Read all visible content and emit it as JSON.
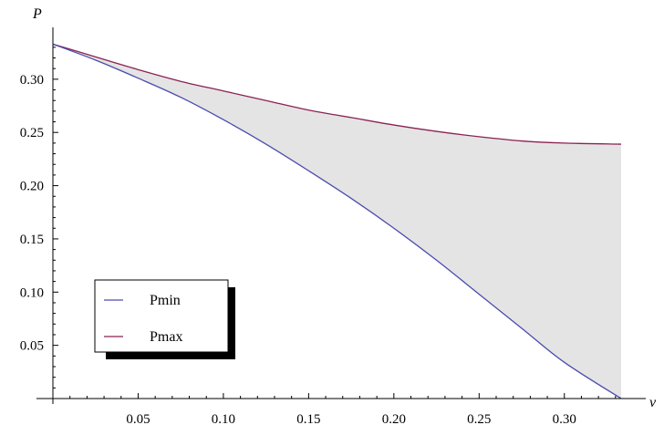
{
  "chart_data": {
    "type": "area",
    "title": "",
    "xlabel": "ν",
    "ylabel": "P",
    "xlim": [
      0,
      0.3333
    ],
    "ylim": [
      0,
      0.3333
    ],
    "grid": false,
    "legend_position": "bottom-left",
    "x_ticks": [
      0.05,
      0.1,
      0.15,
      0.2,
      0.25,
      0.3
    ],
    "x_tick_labels": [
      "0.05",
      "0.10",
      "0.15",
      "0.20",
      "0.25",
      "0.30"
    ],
    "y_ticks": [
      0.05,
      0.1,
      0.15,
      0.2,
      0.25,
      0.3
    ],
    "y_tick_labels": [
      "0.05",
      "0.10",
      "0.15",
      "0.20",
      "0.25",
      "0.30"
    ],
    "fill_between": {
      "lower": "Pmin",
      "upper": "Pmax",
      "color": "#e4e4e4"
    },
    "series": [
      {
        "name": "Pmin",
        "color": "#4b4bb0",
        "x": [
          0,
          0.025,
          0.05,
          0.075,
          0.1,
          0.125,
          0.15,
          0.175,
          0.2,
          0.225,
          0.25,
          0.275,
          0.3,
          0.3333
        ],
        "y": [
          0.333,
          0.318,
          0.301,
          0.283,
          0.262,
          0.239,
          0.214,
          0.188,
          0.16,
          0.13,
          0.098,
          0.066,
          0.034,
          0.0
        ]
      },
      {
        "name": "Pmax",
        "color": "#8b2252",
        "x": [
          0,
          0.025,
          0.05,
          0.075,
          0.1,
          0.125,
          0.15,
          0.175,
          0.2,
          0.225,
          0.25,
          0.275,
          0.3,
          0.3333
        ],
        "y": [
          0.333,
          0.321,
          0.309,
          0.298,
          0.289,
          0.28,
          0.271,
          0.264,
          0.257,
          0.251,
          0.246,
          0.242,
          0.24,
          0.239
        ]
      }
    ]
  }
}
